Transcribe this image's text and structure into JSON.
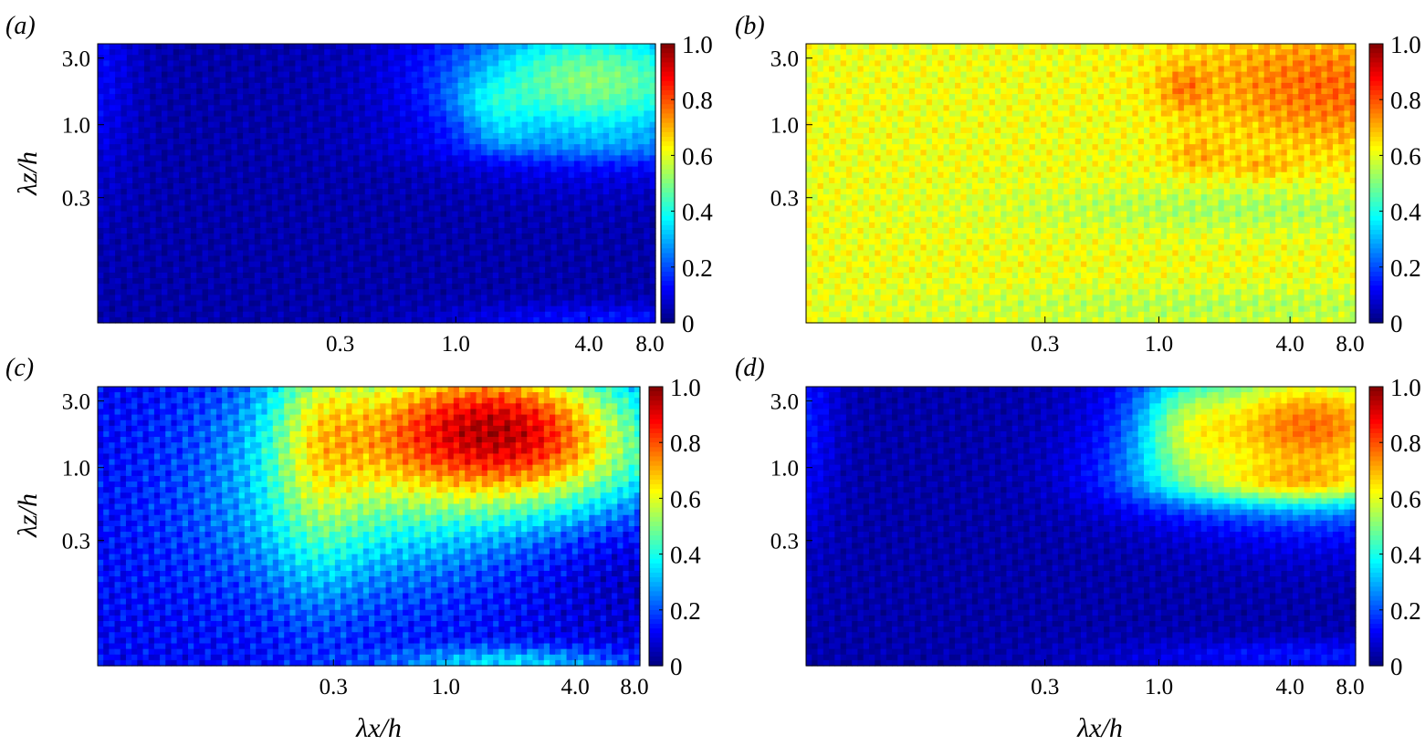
{
  "figure": {
    "xlabel": "λx/h",
    "ylabel": "λz/h"
  },
  "chart_data": [
    {
      "type": "heatmap",
      "panel_label": "(a)",
      "x_scale": "log",
      "y_scale": "log",
      "xticks": [
        0.3,
        1.0,
        4.0,
        8.0
      ],
      "xtick_labels": [
        "0.3",
        "1.0",
        "4.0",
        "8.0"
      ],
      "yticks": [
        0.3,
        1.0,
        3.0
      ],
      "ytick_labels": [
        "0.3",
        "1.0",
        "3.0"
      ],
      "xlim": [
        0.024,
        8.0
      ],
      "ylim": [
        0.038,
        3.8
      ],
      "colorbar": {
        "range": [
          0,
          1
        ],
        "ticks": [
          "0",
          "0.2",
          "0.4",
          "0.6",
          "0.8",
          "1.0"
        ],
        "colormap": "jet"
      },
      "xlabel": "",
      "ylabel": "λz/h",
      "base_level": 0.04,
      "features": [
        {
          "x": 5.0,
          "y": 2.0,
          "sx": 0.5,
          "sy": 0.35,
          "amp": 0.36
        },
        {
          "x": 3.0,
          "y": 2.2,
          "sx": 0.35,
          "sy": 0.3,
          "amp": 0.12
        },
        {
          "x": 1.4,
          "y": 1.4,
          "sx": 0.12,
          "sy": 0.12,
          "amp": 0.1
        },
        {
          "x": 1.6,
          "y": 0.85,
          "sx": 0.1,
          "sy": 0.1,
          "amp": 0.08
        },
        {
          "x": 5.0,
          "y": 0.7,
          "sx": 0.6,
          "sy": 0.08,
          "amp": 0.06
        },
        {
          "x": 5.0,
          "y": 0.04,
          "sx": 0.5,
          "sy": 0.08,
          "amp": 0.1
        },
        {
          "x": 0.024,
          "y": 2.5,
          "sx": 0.12,
          "sy": 0.6,
          "amp": 0.08
        }
      ],
      "texture": 0.04
    },
    {
      "type": "heatmap",
      "panel_label": "(b)",
      "x_scale": "log",
      "y_scale": "log",
      "xticks": [
        0.3,
        1.0,
        4.0,
        8.0
      ],
      "xtick_labels": [
        "0.3",
        "1.0",
        "4.0",
        "8.0"
      ],
      "yticks": [
        0.3,
        1.0,
        3.0
      ],
      "ytick_labels": [
        "0.3",
        "1.0",
        "3.0"
      ],
      "xlim": [
        0.024,
        8.0
      ],
      "ylim": [
        0.038,
        3.8
      ],
      "colorbar": {
        "range": [
          0,
          1
        ],
        "ticks": [
          "0",
          "0.2",
          "0.4",
          "0.6",
          "0.8",
          "1.0"
        ],
        "colormap": "jet"
      },
      "xlabel": "",
      "ylabel": "",
      "base_level": 0.61,
      "features": [
        {
          "x": 7.0,
          "y": 1.6,
          "sx": 0.4,
          "sy": 0.3,
          "amp": 0.13
        },
        {
          "x": 3.5,
          "y": 2.5,
          "sx": 0.4,
          "sy": 0.25,
          "amp": 0.05
        },
        {
          "x": 1.3,
          "y": 1.8,
          "sx": 0.08,
          "sy": 0.12,
          "amp": 0.1
        },
        {
          "x": 1.5,
          "y": 0.6,
          "sx": 0.1,
          "sy": 0.1,
          "amp": 0.08
        },
        {
          "x": 3.0,
          "y": 0.5,
          "sx": 0.1,
          "sy": 0.06,
          "amp": 0.07
        },
        {
          "x": 2.5,
          "y": 0.25,
          "sx": 0.8,
          "sy": 0.12,
          "amp": -0.07
        },
        {
          "x": 2.0,
          "y": 0.05,
          "sx": 1.0,
          "sy": 0.1,
          "amp": -0.06
        }
      ],
      "texture": 0.06
    },
    {
      "type": "heatmap",
      "panel_label": "(c)",
      "x_scale": "log",
      "y_scale": "log",
      "xticks": [
        0.3,
        1.0,
        4.0,
        8.0
      ],
      "xtick_labels": [
        "0.3",
        "1.0",
        "4.0",
        "8.0"
      ],
      "yticks": [
        0.3,
        1.0,
        3.0
      ],
      "ytick_labels": [
        "0.3",
        "1.0",
        "3.0"
      ],
      "xlim": [
        0.024,
        8.0
      ],
      "ylim": [
        0.038,
        3.8
      ],
      "colorbar": {
        "range": [
          0,
          1
        ],
        "ticks": [
          "0",
          "0.2",
          "0.4",
          "0.6",
          "0.8",
          "1.0"
        ],
        "colormap": "jet"
      },
      "xlabel": "λx/h",
      "ylabel": "λz/h",
      "base_level": 0.12,
      "features": [
        {
          "x": 1.2,
          "y": 2.0,
          "sx": 0.55,
          "sy": 0.4,
          "amp": 0.62
        },
        {
          "x": 2.2,
          "y": 2.5,
          "sx": 0.3,
          "sy": 0.25,
          "amp": 0.12
        },
        {
          "x": 3.5,
          "y": 1.0,
          "sx": 0.4,
          "sy": 0.3,
          "amp": 0.22
        },
        {
          "x": 0.35,
          "y": 0.45,
          "sx": 0.5,
          "sy": 0.45,
          "amp": 0.2
        },
        {
          "x": 0.25,
          "y": 2.0,
          "sx": 0.15,
          "sy": 0.8,
          "amp": 0.18
        },
        {
          "x": 2.0,
          "y": 0.04,
          "sx": 0.4,
          "sy": 0.08,
          "amp": 0.22
        },
        {
          "x": 6.5,
          "y": 0.2,
          "sx": 0.3,
          "sy": 0.5,
          "amp": -0.06
        }
      ],
      "texture": 0.07
    },
    {
      "type": "heatmap",
      "panel_label": "(d)",
      "x_scale": "log",
      "y_scale": "log",
      "xticks": [
        0.3,
        1.0,
        4.0,
        8.0
      ],
      "xtick_labels": [
        "0.3",
        "1.0",
        "4.0",
        "8.0"
      ],
      "yticks": [
        0.3,
        1.0,
        3.0
      ],
      "ytick_labels": [
        "0.3",
        "1.0",
        "3.0"
      ],
      "xlim": [
        0.024,
        8.0
      ],
      "ylim": [
        0.038,
        3.8
      ],
      "colorbar": {
        "range": [
          0,
          1
        ],
        "ticks": [
          "0",
          "0.2",
          "0.4",
          "0.6",
          "0.8",
          "1.0"
        ],
        "colormap": "jet"
      },
      "xlabel": "λx/h",
      "ylabel": "",
      "base_level": 0.04,
      "features": [
        {
          "x": 6.0,
          "y": 1.9,
          "sx": 0.45,
          "sy": 0.4,
          "amp": 0.58
        },
        {
          "x": 3.0,
          "y": 2.2,
          "sx": 0.4,
          "sy": 0.35,
          "amp": 0.18
        },
        {
          "x": 1.3,
          "y": 2.0,
          "sx": 0.15,
          "sy": 0.25,
          "amp": 0.2
        },
        {
          "x": 1.2,
          "y": 0.9,
          "sx": 0.3,
          "sy": 0.2,
          "amp": 0.12
        },
        {
          "x": 4.5,
          "y": 0.75,
          "sx": 0.4,
          "sy": 0.1,
          "amp": 0.22
        },
        {
          "x": 5.0,
          "y": 0.045,
          "sx": 0.6,
          "sy": 0.08,
          "amp": 0.1
        },
        {
          "x": 0.024,
          "y": 2.5,
          "sx": 0.1,
          "sy": 0.6,
          "amp": 0.1
        }
      ],
      "texture": 0.04
    }
  ]
}
